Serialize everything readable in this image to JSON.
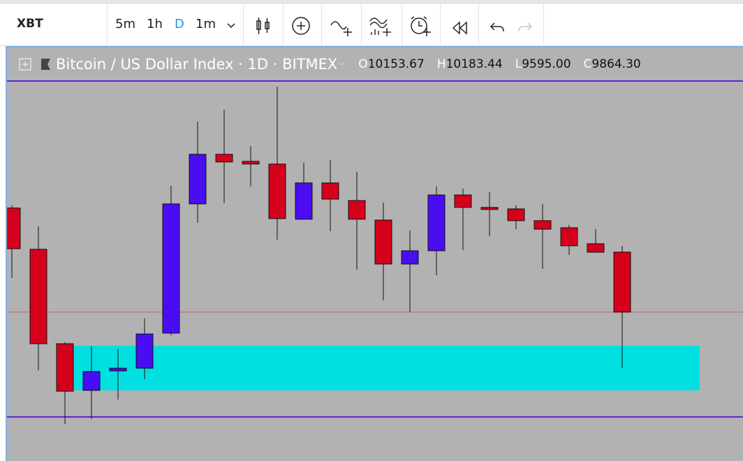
{
  "toolbar": {
    "symbol": "XBT",
    "intervals": [
      "5m",
      "1h",
      "D",
      "1m"
    ],
    "active_interval": 2
  },
  "legend": {
    "title": "Bitcoin / US Dollar Index",
    "interval": "1D",
    "exchange": "BITMEX",
    "ohlc": [
      {
        "letter": "O",
        "value": "10153.67"
      },
      {
        "letter": "H",
        "value": "10183.44"
      },
      {
        "letter": "L",
        "value": "9595.00"
      },
      {
        "letter": "C",
        "value": "9864.30"
      }
    ]
  },
  "chart_data": {
    "type": "candlestick",
    "open": [
      10366,
      10167,
      9712,
      9487,
      9581,
      9594,
      9763,
      10386,
      10625,
      10591,
      10578,
      10312,
      10487,
      10402,
      10308,
      10096,
      10160,
      10429,
      10369,
      10362,
      10305,
      10271,
      10194,
      10153.67
    ],
    "high": [
      10379,
      10278,
      9719,
      9699,
      9685,
      9834,
      10473,
      10783,
      10840,
      10665,
      10951,
      10584,
      10598,
      10541,
      10392,
      10258,
      10470,
      10460,
      10443,
      10379,
      10386,
      10285,
      10264,
      10183.44
    ],
    "low": [
      10029,
      9584,
      9325,
      9349,
      9443,
      9541,
      9753,
      10295,
      10389,
      10470,
      10214,
      10312,
      10254,
      10069,
      9921,
      9864,
      10042,
      10163,
      10231,
      10264,
      10073,
      10140,
      10153,
      9595
    ],
    "close": [
      10170,
      9712,
      9483,
      9578,
      9594,
      9759,
      10386,
      10625,
      10588,
      10578,
      10315,
      10487,
      10409,
      10312,
      10096,
      10160,
      10429,
      10369,
      10359,
      10305,
      10264,
      10184,
      10153,
      9864.3
    ],
    "up_color": "#4a0cf0",
    "down_color": "#d4001c",
    "ylim": [
      9214,
      11032
    ],
    "hlines": [
      10978,
      9359
    ],
    "hline_color": "#5a22d0",
    "zone": [
      9487,
      9702
    ],
    "zone_color": "#00e0e0"
  }
}
